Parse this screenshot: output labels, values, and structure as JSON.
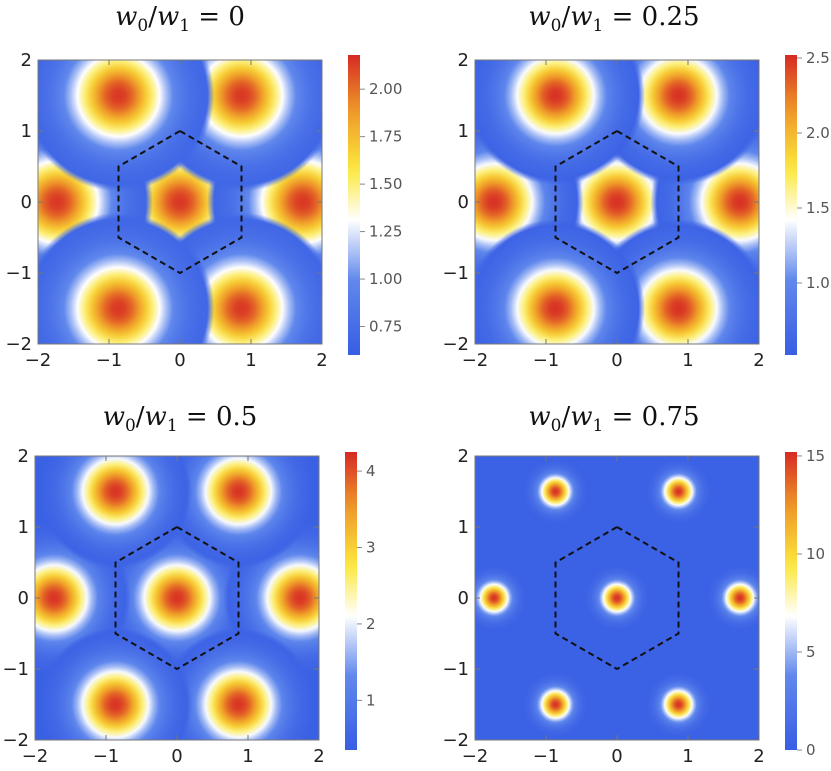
{
  "chart_data": [
    {
      "type": "heatmap",
      "title": "w0/w1 = 0",
      "title_parts": {
        "lhs_w": "w",
        "lhs_sub": "0",
        "slash": "/",
        "rhs_w": "w",
        "rhs_sub": "1",
        "eq": "=",
        "value": "0"
      },
      "xlim": [
        -2,
        2
      ],
      "ylim": [
        -2,
        2
      ],
      "x_ticks": [
        "−2",
        "−1",
        "0",
        "1",
        "2"
      ],
      "y_ticks": [
        "−2",
        "−1",
        "0",
        "1",
        "2"
      ],
      "colorbar": {
        "range": [
          0.6,
          2.18
        ],
        "ticks": [
          "0.75",
          "1.00",
          "1.25",
          "1.50",
          "1.75",
          "2.00"
        ],
        "tick_values": [
          0.75,
          1.0,
          1.25,
          1.5,
          1.75,
          2.0
        ]
      },
      "peaks": [
        [
          0,
          0
        ],
        [
          1.732,
          0
        ],
        [
          -1.732,
          0
        ],
        [
          0.866,
          1.5
        ],
        [
          -0.866,
          1.5
        ],
        [
          0.866,
          -1.5
        ],
        [
          -0.866,
          -1.5
        ]
      ],
      "peak_value": 2.15,
      "background_value": 0.65,
      "peak_width": 0.45,
      "hexagon": {
        "style": "dashed",
        "vertices": [
          [
            0,
            1
          ],
          [
            0.866,
            0.5
          ],
          [
            0.866,
            -0.5
          ],
          [
            0,
            -1
          ],
          [
            -0.866,
            -0.5
          ],
          [
            -0.866,
            0.5
          ]
        ]
      }
    },
    {
      "type": "heatmap",
      "title": "w0/w1 = 0.25",
      "title_parts": {
        "lhs_w": "w",
        "lhs_sub": "0",
        "slash": "/",
        "rhs_w": "w",
        "rhs_sub": "1",
        "eq": "=",
        "value": "0.25"
      },
      "xlim": [
        -2,
        2
      ],
      "ylim": [
        -2,
        2
      ],
      "x_ticks": [
        "−2",
        "−1",
        "0",
        "1",
        "2"
      ],
      "y_ticks": [
        "−2",
        "−1",
        "0",
        "1",
        "2"
      ],
      "colorbar": {
        "range": [
          0.52,
          2.52
        ],
        "ticks": [
          "1.0",
          "1.5",
          "2.0",
          "2.5"
        ],
        "tick_values": [
          1.0,
          1.5,
          2.0,
          2.5
        ]
      },
      "peaks": [
        [
          0,
          0
        ],
        [
          1.732,
          0
        ],
        [
          -1.732,
          0
        ],
        [
          0.866,
          1.5
        ],
        [
          -0.866,
          1.5
        ],
        [
          0.866,
          -1.5
        ],
        [
          -0.866,
          -1.5
        ]
      ],
      "peak_value": 2.5,
      "background_value": 0.55,
      "peak_width": 0.42,
      "hexagon": {
        "style": "dashed",
        "vertices": [
          [
            0,
            1
          ],
          [
            0.866,
            0.5
          ],
          [
            0.866,
            -0.5
          ],
          [
            0,
            -1
          ],
          [
            -0.866,
            -0.5
          ],
          [
            -0.866,
            0.5
          ]
        ]
      }
    },
    {
      "type": "heatmap",
      "title": "w0/w1 = 0.5",
      "title_parts": {
        "lhs_w": "w",
        "lhs_sub": "0",
        "slash": "/",
        "rhs_w": "w",
        "rhs_sub": "1",
        "eq": "=",
        "value": "0.5"
      },
      "xlim": [
        -2,
        2
      ],
      "ylim": [
        -2,
        2
      ],
      "x_ticks": [
        "−2",
        "−1",
        "0",
        "1",
        "2"
      ],
      "y_ticks": [
        "−2",
        "−1",
        "0",
        "1",
        "2"
      ],
      "colorbar": {
        "range": [
          0.35,
          4.25
        ],
        "ticks": [
          "1",
          "2",
          "3",
          "4"
        ],
        "tick_values": [
          1,
          2,
          3,
          4
        ]
      },
      "peaks": [
        [
          0,
          0
        ],
        [
          1.732,
          0
        ],
        [
          -1.732,
          0
        ],
        [
          0.866,
          1.5
        ],
        [
          -0.866,
          1.5
        ],
        [
          0.866,
          -1.5
        ],
        [
          -0.866,
          -1.5
        ]
      ],
      "peak_value": 4.2,
      "background_value": 0.4,
      "peak_width": 0.36,
      "hexagon": {
        "style": "dashed",
        "vertices": [
          [
            0,
            1
          ],
          [
            0.866,
            0.5
          ],
          [
            0.866,
            -0.5
          ],
          [
            0,
            -1
          ],
          [
            -0.866,
            -0.5
          ],
          [
            -0.866,
            0.5
          ]
        ]
      }
    },
    {
      "type": "heatmap",
      "title": "w0/w1 = 0.75",
      "title_parts": {
        "lhs_w": "w",
        "lhs_sub": "0",
        "slash": "/",
        "rhs_w": "w",
        "rhs_sub": "1",
        "eq": "=",
        "value": "0.75"
      },
      "xlim": [
        -2,
        2
      ],
      "ylim": [
        -2,
        2
      ],
      "x_ticks": [
        "−2",
        "−1",
        "0",
        "1",
        "2"
      ],
      "y_ticks": [
        "−2",
        "−1",
        "0",
        "1",
        "2"
      ],
      "colorbar": {
        "range": [
          0,
          15.2
        ],
        "ticks": [
          "0",
          "5",
          "10",
          "15"
        ],
        "tick_values": [
          0,
          5,
          10,
          15
        ]
      },
      "peaks": [
        [
          0,
          0
        ],
        [
          1.732,
          0
        ],
        [
          -1.732,
          0
        ],
        [
          0.866,
          1.5
        ],
        [
          -0.866,
          1.5
        ],
        [
          0.866,
          -1.5
        ],
        [
          -0.866,
          -1.5
        ]
      ],
      "peak_value": 15,
      "background_value": 0.3,
      "peak_width": 0.15,
      "hexagon": {
        "style": "dashed",
        "vertices": [
          [
            0,
            1
          ],
          [
            0.866,
            0.5
          ],
          [
            0.866,
            -0.5
          ],
          [
            0,
            -1
          ],
          [
            -0.866,
            -0.5
          ],
          [
            -0.866,
            0.5
          ]
        ]
      }
    }
  ]
}
